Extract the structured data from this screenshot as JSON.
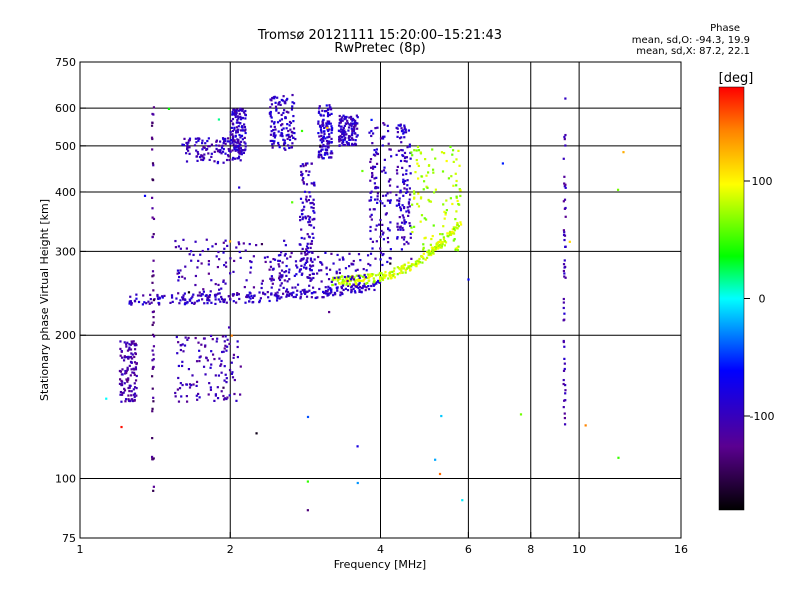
{
  "chart_data": {
    "type": "scatter",
    "title": "Tromsø 20121111 15:20:00–15:21:43",
    "subtitle": "RwPretec (8p)",
    "xlabel": "Frequency [MHz]",
    "ylabel": "Stationary phase Virtual Height [km]",
    "x_scale": "log",
    "y_scale": "log",
    "xlim": [
      1,
      16
    ],
    "ylim": [
      75,
      750
    ],
    "x_ticks": [
      1,
      2,
      4,
      6,
      8,
      10,
      16
    ],
    "y_ticks": [
      75,
      100,
      200,
      300,
      400,
      500,
      600,
      750
    ],
    "x_grid": [
      2,
      4,
      6,
      8,
      10
    ],
    "y_grid": [
      100,
      200,
      300,
      400,
      500,
      600
    ],
    "grid": true,
    "color_scale": {
      "label": "[deg]",
      "range": [
        -180,
        180
      ],
      "ticks": [
        100,
        0,
        -100
      ],
      "colors": [
        "#000000",
        "#5a0090",
        "#0000ff",
        "#00ffff",
        "#00ff00",
        "#ffff00",
        "#ff0000"
      ]
    },
    "phase_stats": {
      "header": "Phase",
      "line1": "mean, sd,O: -94.3, 19.9",
      "line2": "mean, sd,X:  87.2, 22.1"
    },
    "traces": [
      {
        "name_hint": "F-layer O-mode trace",
        "x_range": [
          1.25,
          4.0
        ],
        "base_height": [
          232,
          250
        ],
        "phase": -95
      },
      {
        "name_hint": "F-layer X-mode trace",
        "x_range": [
          3.2,
          5.8
        ],
        "base_height": [
          255,
          340
        ],
        "phase": 87
      }
    ],
    "clusters": [
      {
        "x": [
          1.2,
          1.3
        ],
        "y": [
          145,
          195
        ],
        "phase": -110
      },
      {
        "x": [
          1.55,
          2.1
        ],
        "y": [
          145,
          200
        ],
        "phase": -105
      },
      {
        "x": [
          1.6,
          2.1
        ],
        "y": [
          460,
          520
        ],
        "phase": -100
      },
      {
        "x": [
          2.0,
          2.15
        ],
        "y": [
          480,
          600
        ],
        "phase": -95
      },
      {
        "x": [
          2.4,
          2.7
        ],
        "y": [
          490,
          640
        ],
        "phase": -95
      },
      {
        "x": [
          2.75,
          2.95
        ],
        "y": [
          260,
          460
        ],
        "phase": -100
      },
      {
        "x": [
          3.0,
          3.2
        ],
        "y": [
          470,
          610
        ],
        "phase": -90
      },
      {
        "x": [
          3.3,
          3.6
        ],
        "y": [
          500,
          580
        ],
        "phase": -95
      },
      {
        "x": [
          1.55,
          2.6
        ],
        "y": [
          240,
          320
        ],
        "phase": -105
      },
      {
        "x": [
          2.4,
          3.8
        ],
        "y": [
          250,
          300
        ],
        "phase": -100
      },
      {
        "x": [
          3.8,
          4.2
        ],
        "y": [
          280,
          560
        ],
        "phase": -98
      },
      {
        "x": [
          4.3,
          4.6
        ],
        "y": [
          300,
          560
        ],
        "phase": -95
      },
      {
        "x": [
          4.6,
          5.8
        ],
        "y": [
          300,
          500
        ],
        "phase": 80
      }
    ],
    "columns": [
      {
        "x": 1.4,
        "y": [
          93,
          640
        ],
        "phase": -130
      },
      {
        "x": 9.35,
        "y": [
          130,
          640
        ],
        "phase": -105
      }
    ]
  }
}
